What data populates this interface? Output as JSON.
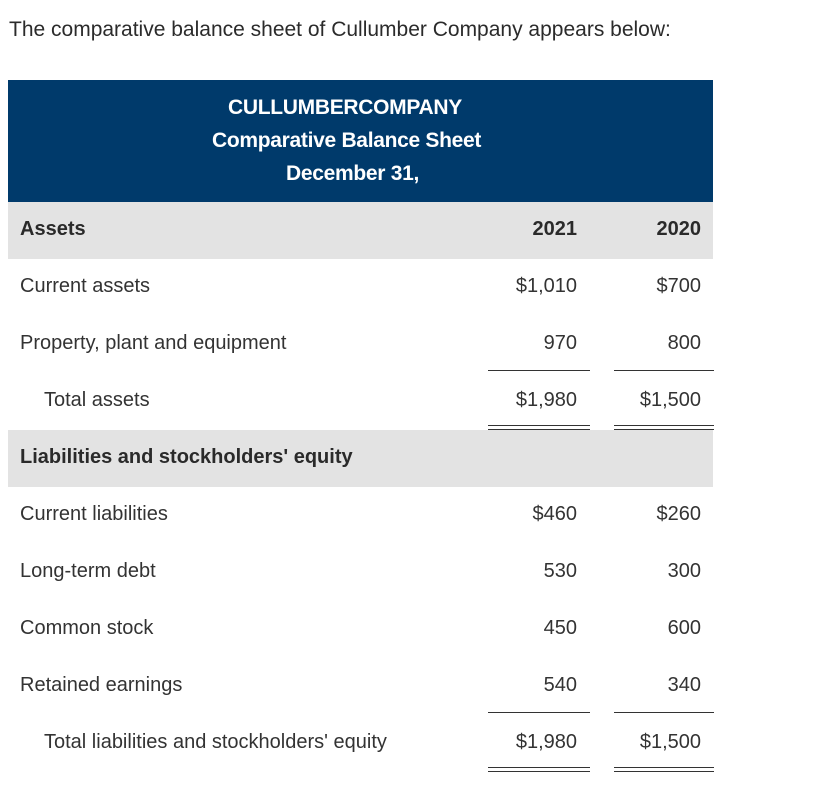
{
  "intro": "The comparative balance sheet of Cullumber Company appears below:",
  "header": {
    "company": "CULLUMBERCOMPANY",
    "title": "Comparative Balance Sheet",
    "date": "December 31,"
  },
  "columns": {
    "label": "Assets",
    "year1": "2021",
    "year2": "2020"
  },
  "assets": [
    {
      "label": "Current assets",
      "v2021": "$1,010",
      "v2020": "$700"
    },
    {
      "label": "Property, plant and equipment",
      "v2021": "970",
      "v2020": "800"
    }
  ],
  "total_assets": {
    "label": "Total assets",
    "v2021": "$1,980",
    "v2020": "$1,500"
  },
  "liabilities_header": "Liabilities and stockholders' equity",
  "liabilities": [
    {
      "label": "Current liabilities",
      "v2021": "$460",
      "v2020": "$260"
    },
    {
      "label": "Long-term debt",
      "v2021": "530",
      "v2020": "300"
    },
    {
      "label": "Common stock",
      "v2021": "450",
      "v2020": "600"
    },
    {
      "label": "Retained earnings",
      "v2021": "540",
      "v2020": "340"
    }
  ],
  "total_liabilities": {
    "label": "Total liabilities and stockholders' equity",
    "v2021": "$1,980",
    "v2020": "$1,500"
  }
}
